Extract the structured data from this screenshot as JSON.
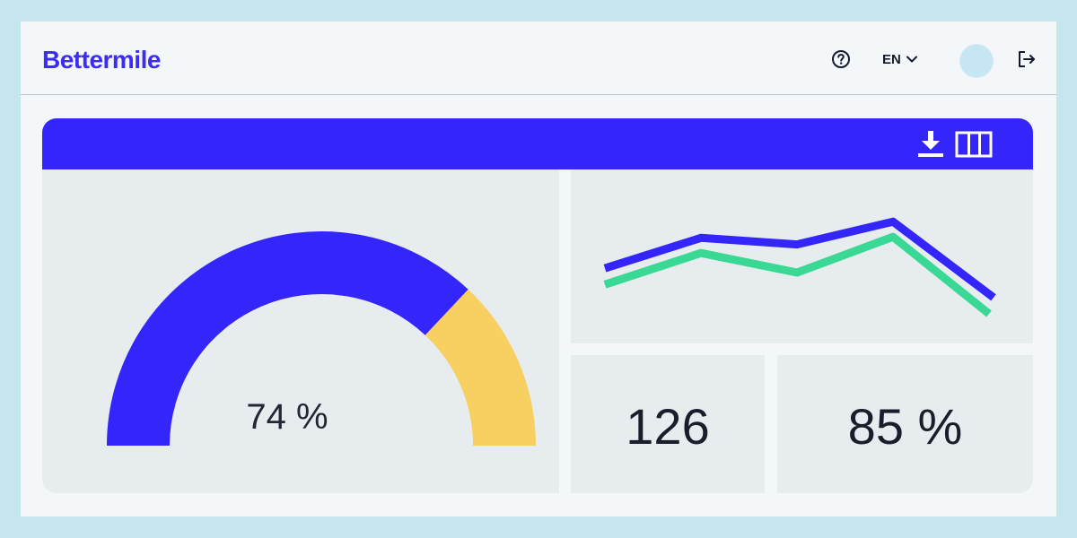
{
  "header": {
    "logo": "Bettermile",
    "language": "EN",
    "help_icon": "question-circle-icon",
    "language_chevron_icon": "chevron-down-icon",
    "logout_icon": "logout-icon"
  },
  "panel": {
    "download_icon": "download-icon",
    "columns_icon": "columns-icon"
  },
  "gauge": {
    "label": "74 %",
    "value": 0.74
  },
  "stats": {
    "first": "126",
    "second": "85 %"
  },
  "colors": {
    "brand": "#3426fb",
    "gauge_remainder": "#f7d061",
    "series_green": "#3ad895",
    "background": "#c6e6ee"
  },
  "chart_data": {
    "type": "line",
    "series": [
      {
        "values": [
          0.42,
          0.7,
          0.64,
          0.85,
          0.15
        ]
      },
      {
        "values": [
          0.27,
          0.56,
          0.38,
          0.71,
          0.0
        ]
      }
    ],
    "ylim": [
      0,
      1
    ],
    "grid": false
  }
}
